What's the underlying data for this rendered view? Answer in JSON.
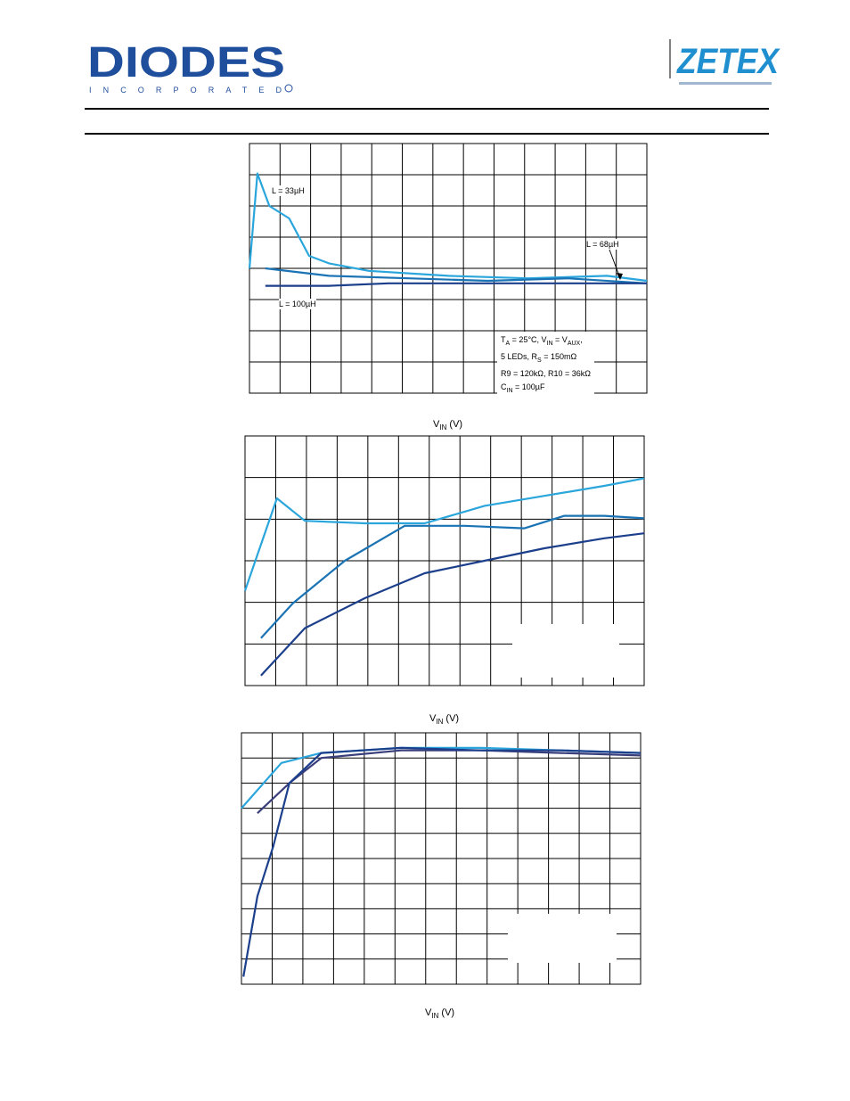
{
  "header": {
    "left_logo_text": "DIODES",
    "left_logo_subtext": "INCORPORATED",
    "right_logo_text": "ZETEX",
    "brand_blue": "#1f4e9c",
    "zetex_blue": "#1f8fd0"
  },
  "chart_data": [
    {
      "type": "line",
      "x_label": "VIN (V)",
      "grid": true,
      "series": [
        {
          "name": "L = 33µH",
          "color": "#2aa6dc",
          "x": [
            0,
            0.02,
            0.05,
            0.1,
            0.15,
            0.2,
            0.3,
            0.5,
            0.7,
            0.9,
            1.0
          ],
          "y": [
            0.5,
            0.88,
            0.75,
            0.7,
            0.55,
            0.52,
            0.49,
            0.47,
            0.46,
            0.47,
            0.45
          ]
        },
        {
          "name": "L = 68µH",
          "color": "#1a73b4",
          "x": [
            0.04,
            0.2,
            0.4,
            0.6,
            0.8,
            1.0
          ],
          "y": [
            0.5,
            0.47,
            0.46,
            0.45,
            0.46,
            0.44
          ]
        },
        {
          "name": "L = 100µH",
          "color": "#1c3f8c",
          "x": [
            0.04,
            0.2,
            0.35,
            0.6,
            0.8,
            1.0
          ],
          "y": [
            0.43,
            0.43,
            0.44,
            0.44,
            0.44,
            0.44
          ]
        }
      ],
      "conditions": [
        "TA = 25°C, VIN = VAUX,",
        "5 LEDs, RS = 150mΩ",
        "R9 = 120kΩ, R10 = 36kΩ",
        "CIN = 100µF"
      ]
    },
    {
      "type": "line",
      "x_label": "VIN (V)",
      "grid": true,
      "series": [
        {
          "color": "#2aa6dc",
          "x": [
            0,
            0.08,
            0.15,
            0.3,
            0.45,
            0.6,
            0.75,
            0.9,
            1.0
          ],
          "y": [
            0.38,
            0.75,
            0.66,
            0.65,
            0.65,
            0.72,
            0.76,
            0.8,
            0.83
          ]
        },
        {
          "color": "#1a73b4",
          "x": [
            0.04,
            0.12,
            0.25,
            0.4,
            0.55,
            0.7,
            0.8,
            0.9,
            1.0
          ],
          "y": [
            0.19,
            0.33,
            0.5,
            0.64,
            0.64,
            0.63,
            0.68,
            0.68,
            0.67
          ]
        },
        {
          "color": "#1c3f8c",
          "x": [
            0.04,
            0.15,
            0.3,
            0.45,
            0.6,
            0.75,
            0.9,
            1.0
          ],
          "y": [
            0.04,
            0.23,
            0.35,
            0.45,
            0.5,
            0.55,
            0.59,
            0.61
          ]
        }
      ]
    },
    {
      "type": "line",
      "x_label": "VIN (V)",
      "grid": true,
      "series": [
        {
          "color": "#2aa6dc",
          "x": [
            0,
            0.1,
            0.2,
            0.4,
            0.6,
            0.8,
            1.0
          ],
          "y": [
            0.7,
            0.88,
            0.92,
            0.94,
            0.94,
            0.93,
            0.92
          ]
        },
        {
          "color": "#3a3f7c",
          "x": [
            0.04,
            0.12,
            0.2,
            0.4,
            0.6,
            0.8,
            1.0
          ],
          "y": [
            0.68,
            0.8,
            0.9,
            0.93,
            0.93,
            0.92,
            0.91
          ]
        },
        {
          "color": "#1c3f8c",
          "x": [
            0.005,
            0.04,
            0.08,
            0.12,
            0.2,
            0.4,
            0.6,
            0.8,
            1.0
          ],
          "y": [
            0.03,
            0.35,
            0.55,
            0.8,
            0.92,
            0.94,
            0.93,
            0.93,
            0.92
          ]
        }
      ]
    }
  ]
}
